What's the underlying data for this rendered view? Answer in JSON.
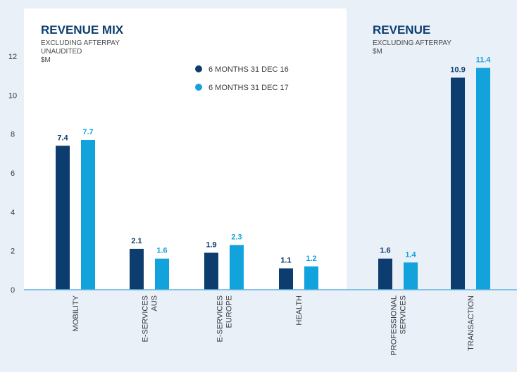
{
  "chart_data": {
    "type": "bar",
    "categories": [
      "MOBILITY",
      "E-SERVICES AUS",
      "E-SERVICES EUROPE",
      "HEALTH",
      "PROFESSIONAL SERVICES",
      "TRANSACTION"
    ],
    "category_lines": [
      [
        "MOBILITY"
      ],
      [
        "E-SERVICES",
        "AUS"
      ],
      [
        "E-SERVICES",
        "EUROPE"
      ],
      [
        "HEALTH"
      ],
      [
        "PROFESSIONAL",
        "SERVICES"
      ],
      [
        "TRANSACTION"
      ]
    ],
    "series": [
      {
        "name": "6 MONTHS 31 DEC 16",
        "values": [
          7.4,
          2.1,
          1.9,
          1.1,
          1.6,
          10.9
        ],
        "color": "#0d3d6e"
      },
      {
        "name": "6 MONTHS 31 DEC 17",
        "values": [
          7.7,
          1.6,
          2.3,
          1.2,
          1.4,
          11.4
        ],
        "color": "#13a3dc"
      }
    ],
    "value_labels": [
      [
        "7.4",
        "2.1",
        "1.9",
        "1.1",
        "1.6",
        "10.9"
      ],
      [
        "7.7",
        "1.6",
        "2.3",
        "1.2",
        "1.4",
        "11.4"
      ]
    ],
    "ylim": [
      0,
      12
    ],
    "yticks": [
      "0",
      "2",
      "4",
      "6",
      "8",
      "10",
      "12"
    ],
    "grid": false,
    "legend": "top-center",
    "panels": [
      {
        "title": "REVENUE MIX",
        "subtitle_lines": [
          "EXCLUDING AFTERPAY",
          "UNAUDITED",
          "$M"
        ],
        "categories": [
          0,
          1,
          2,
          3
        ]
      },
      {
        "title": "REVENUE",
        "subtitle_lines": [
          "EXCLUDING AFTERPAY",
          "$M"
        ],
        "categories": [
          4,
          5
        ]
      }
    ]
  },
  "colors": {
    "page_bg": "#e9f0f8",
    "panel_bg": "#ffffff",
    "axis": "#5fb2e0",
    "title": "#0d3d6e",
    "tick_text": "#3a3a3a"
  }
}
